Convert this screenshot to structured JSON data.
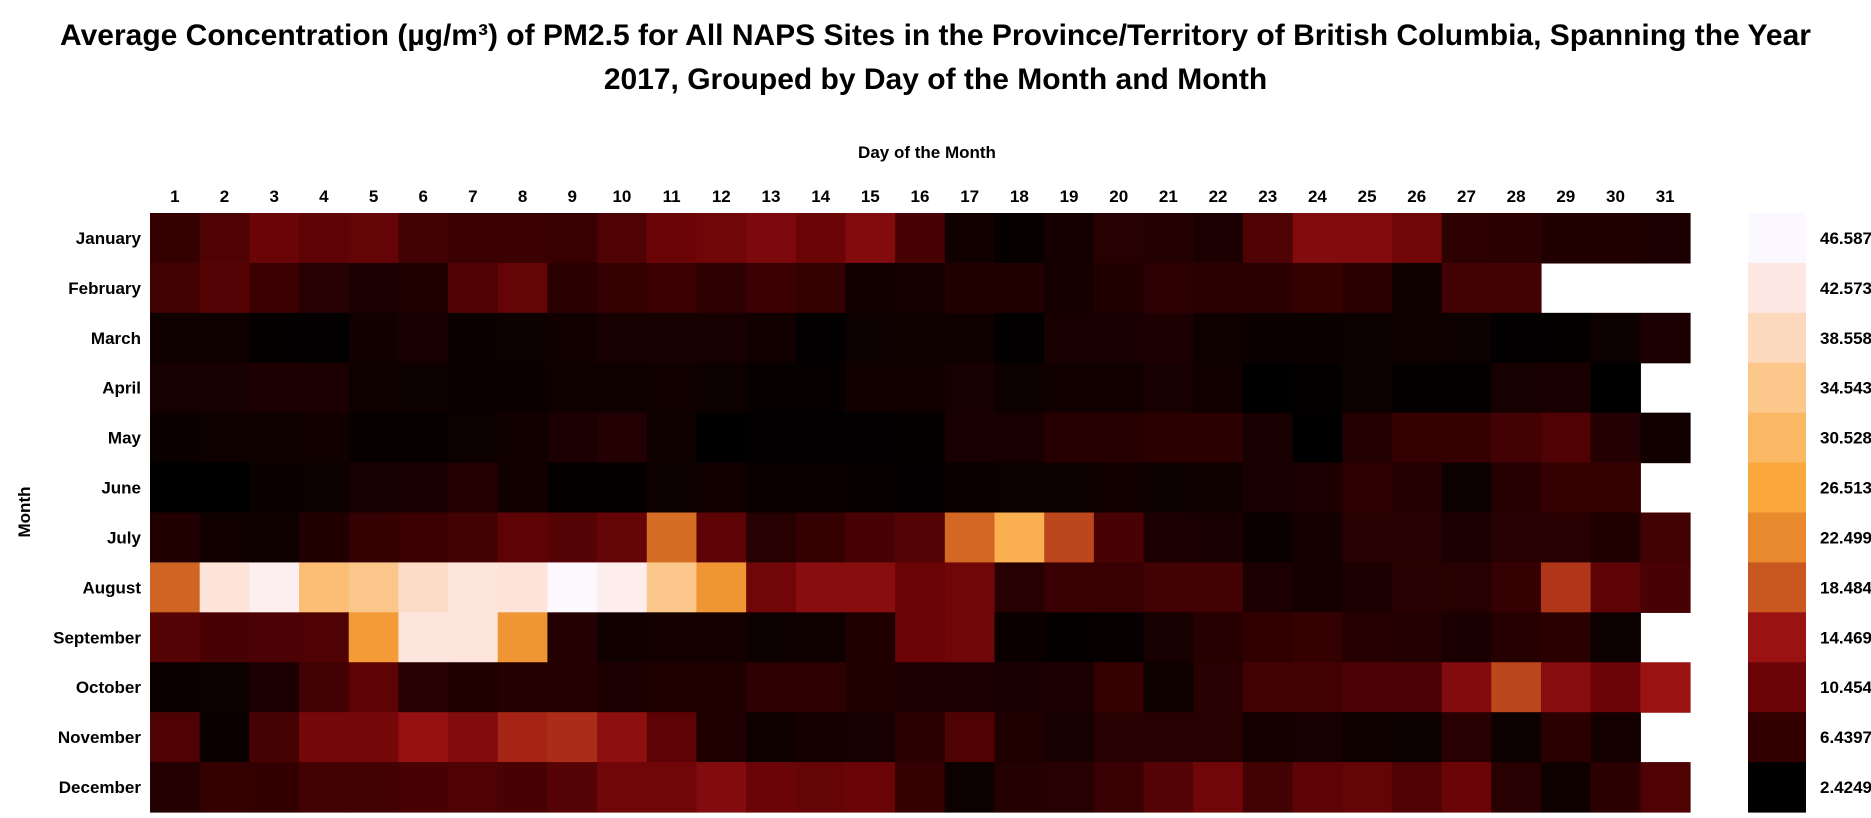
{
  "chart_data": {
    "type": "heatmap",
    "title_line1": "Average Concentration (µg/m³) of PM2.5 for All NAPS Sites in the Province/Territory of British Columbia, Spanning the Year",
    "title_line2": "2017, Grouped by Day of the Month and Month",
    "xlabel": "Day of the Month",
    "ylabel": "Month",
    "x": [
      "1",
      "2",
      "3",
      "4",
      "5",
      "6",
      "7",
      "8",
      "9",
      "10",
      "11",
      "12",
      "13",
      "14",
      "15",
      "16",
      "17",
      "18",
      "19",
      "20",
      "21",
      "22",
      "23",
      "24",
      "25",
      "26",
      "27",
      "28",
      "29",
      "30",
      "31"
    ],
    "y": [
      "January",
      "February",
      "March",
      "April",
      "May",
      "June",
      "July",
      "August",
      "September",
      "October",
      "November",
      "December"
    ],
    "values": [
      [
        6.5,
        8.5,
        10.5,
        9.5,
        10,
        7.5,
        7,
        7,
        6.8,
        8.5,
        10.5,
        11,
        12,
        10.5,
        12.5,
        8,
        3.8,
        3,
        4,
        5.5,
        5.2,
        4.6,
        8.5,
        12.5,
        12.5,
        11,
        6,
        5.8,
        5,
        5,
        4.6
      ],
      [
        7.5,
        9,
        7,
        5.5,
        4.6,
        5,
        8.5,
        10,
        5.8,
        6.5,
        7,
        6,
        7,
        6.5,
        3.8,
        4,
        5,
        5,
        4,
        5,
        6,
        5.8,
        5.8,
        6.5,
        5.8,
        3.6,
        7.5,
        7.5,
        null,
        null,
        null
      ],
      [
        3.6,
        3.6,
        2.8,
        2.6,
        3.8,
        4.4,
        3.2,
        3.4,
        3.8,
        4.2,
        4.2,
        4.2,
        3.8,
        2.6,
        3.4,
        3.6,
        3.6,
        2.6,
        4.4,
        4.4,
        4.6,
        3.6,
        3.2,
        3.2,
        3.4,
        3.6,
        3.4,
        2.6,
        2.8,
        3.4,
        4.6
      ],
      [
        4.2,
        4.2,
        4.6,
        4.6,
        3.6,
        3.4,
        3.2,
        3.2,
        3.6,
        3.6,
        3.8,
        3.4,
        3.0,
        3.0,
        3.8,
        3.8,
        4.2,
        3.4,
        3.8,
        3.8,
        4.2,
        3.8,
        2.4,
        2.8,
        3.4,
        2.8,
        2.8,
        4.2,
        4.4,
        2.43,
        null
      ],
      [
        3.2,
        3.6,
        3.6,
        3.8,
        3.0,
        3.0,
        3.4,
        3.8,
        4.6,
        5.2,
        3.6,
        2.43,
        2.6,
        2.6,
        2.6,
        2.8,
        4.4,
        4.4,
        5.4,
        5.4,
        5.8,
        5.8,
        4.4,
        2.43,
        5.2,
        6.5,
        6.5,
        7.5,
        8.5,
        5.2,
        3.8
      ],
      [
        2.5,
        2.5,
        3.2,
        3.4,
        4.2,
        4.4,
        5.2,
        3.8,
        2.8,
        2.8,
        3.4,
        3.8,
        3.2,
        3.2,
        3.0,
        2.6,
        3.2,
        3.4,
        3.4,
        3.8,
        3.4,
        3.6,
        4.4,
        4.6,
        6,
        5.2,
        3.4,
        5.4,
        6.5,
        6.5,
        null
      ],
      [
        5,
        3.8,
        3.6,
        5,
        6.5,
        7,
        7.5,
        9.5,
        9,
        10,
        20.2,
        9.5,
        5.5,
        6.5,
        8,
        9,
        19.8,
        28.5,
        17.5,
        8,
        4.6,
        4.4,
        3.2,
        4,
        5.5,
        5.5,
        4.6,
        5.5,
        5.6,
        4.8,
        7.5
      ],
      [
        19.5,
        41.5,
        44.5,
        32,
        34.3,
        39.5,
        42,
        41.5,
        46.5,
        44,
        34.5,
        24,
        11,
        13,
        13,
        10.5,
        11,
        5.5,
        6.8,
        6.8,
        7.5,
        7.5,
        4.6,
        4.0,
        4.6,
        5.6,
        5.5,
        6.5,
        16.5,
        9.5,
        8
      ],
      [
        9,
        8,
        8.2,
        8.5,
        25,
        42,
        42,
        24,
        5.2,
        3.8,
        4,
        4,
        3.4,
        3.6,
        4.8,
        10.5,
        11,
        3.2,
        2.8,
        2.9,
        4.2,
        5.4,
        6.2,
        6.6,
        5.4,
        5.2,
        4.5,
        5.4,
        5.8,
        3.4,
        null
      ],
      [
        3.2,
        3.4,
        4.6,
        7.5,
        9.5,
        5.5,
        4.8,
        5.2,
        5.2,
        4.6,
        4.8,
        4.8,
        6.0,
        6.0,
        5.0,
        4.6,
        4.6,
        4.4,
        4.6,
        6.5,
        3.6,
        5.6,
        7.5,
        7.5,
        8.2,
        8.2,
        12.5,
        17.5,
        13,
        10.5,
        14.5
      ],
      [
        8.5,
        3.2,
        7.8,
        11.5,
        11.5,
        14,
        12.5,
        15.5,
        16,
        13.5,
        9.5,
        4.8,
        3.6,
        4.0,
        4.2,
        5.8,
        8.5,
        4.8,
        4.2,
        5.5,
        5.5,
        5.5,
        4.0,
        4.2,
        3.6,
        3.4,
        5.6,
        3.4,
        5.8,
        4.0,
        null
      ],
      [
        5.2,
        6.5,
        6.4,
        7.5,
        7.5,
        8,
        8.4,
        8,
        9,
        11,
        11,
        12.5,
        10.5,
        10,
        10.5,
        6.5,
        3.4,
        5.2,
        5.5,
        6.8,
        9,
        11,
        7.5,
        9.5,
        10,
        8.5,
        10.5,
        5.6,
        3.6,
        5.8,
        8.5
      ]
    ],
    "colorbar": {
      "ticks": [
        "46.5878",
        "42.573",
        "38.5582",
        "34.5434",
        "30.5286",
        "26.5138",
        "22.499",
        "18.4841",
        "14.4693",
        "10.4545",
        "6.4397",
        "2.4249"
      ],
      "colors": [
        "#fcf8ff",
        "#fde7e2",
        "#fcd9bd",
        "#fbc78b",
        "#fab865",
        "#faa83c",
        "#e8892e",
        "#c8581f",
        "#9a1212",
        "#6a0407",
        "#330001",
        "#000000"
      ]
    },
    "vmin": 2.4249,
    "vmax": 46.5878
  }
}
